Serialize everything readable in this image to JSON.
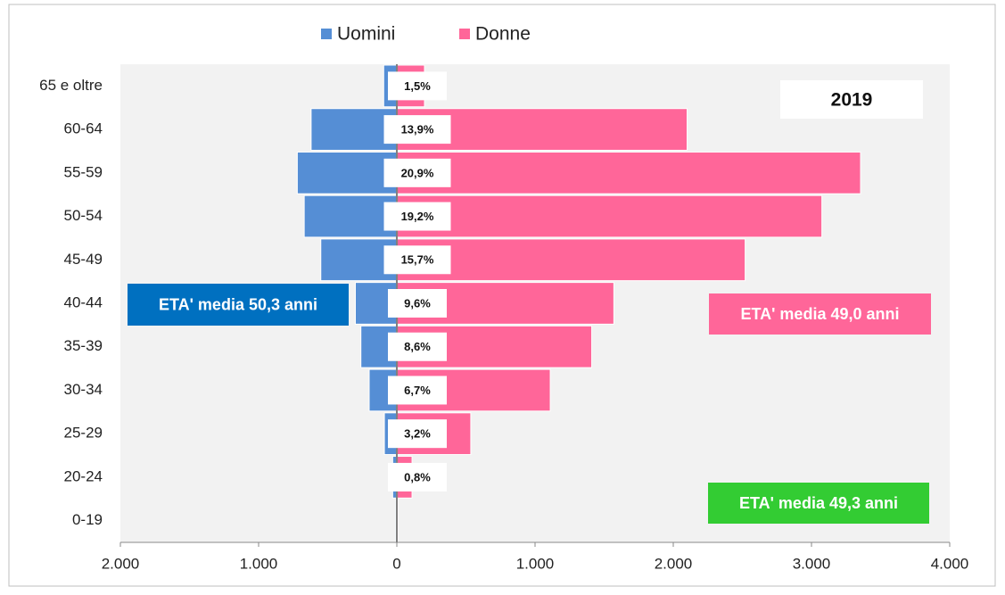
{
  "chart_data": {
    "type": "pyramid",
    "categories": [
      "0-19",
      "20-24",
      "25-29",
      "30-34",
      "35-39",
      "40-44",
      "45-49",
      "50-54",
      "55-59",
      "60-64",
      "65 e oltre"
    ],
    "series": [
      {
        "name": "Uomini",
        "color": "#558ed5",
        "values": [
          -10,
          -30,
          -90,
          -200,
          -260,
          -300,
          -550,
          -670,
          -720,
          -620,
          -95
        ]
      },
      {
        "name": "Donne",
        "color": "#ff6699",
        "values": [
          10,
          110,
          535,
          1110,
          1410,
          1570,
          2520,
          3075,
          3355,
          2100,
          200
        ]
      }
    ],
    "share_values": [
      null,
      0.8,
      3.2,
      6.7,
      8.6,
      9.6,
      15.7,
      19.2,
      20.9,
      13.9,
      1.5
    ],
    "share_labels": [
      null,
      "0,8%",
      "3,2%",
      "6,7%",
      "8,6%",
      "9,6%",
      "15,7%",
      "19,2%",
      "20,9%",
      "13,9%",
      "1,5%"
    ],
    "xlim": [
      -2000,
      4000
    ],
    "xticks": [
      {
        "value": -2000,
        "label": "2.000"
      },
      {
        "value": -1000,
        "label": "1.000"
      },
      0,
      {
        "value": 1000,
        "label": "1.000"
      },
      {
        "value": 2000,
        "label": "2.000"
      },
      {
        "value": 3000,
        "label": "3.000"
      },
      {
        "value": 4000,
        "label": "4.000"
      }
    ],
    "year_label": "2019",
    "annotations": {
      "men": "ETA' media  50,3 anni",
      "women": "ETA' media  49,0 anni",
      "total": "ETA' media  49,3 anni"
    },
    "annotation_colors": {
      "men": "#0070c0",
      "women": "#ff6699",
      "total": "#33cc33"
    }
  }
}
